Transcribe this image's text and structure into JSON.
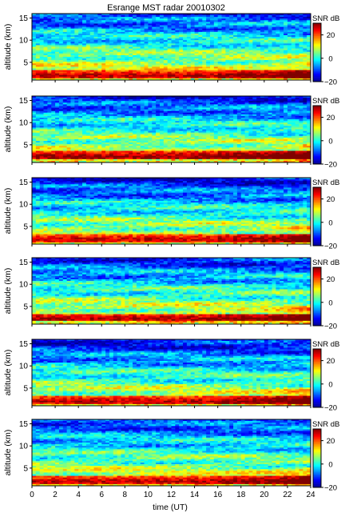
{
  "chart_data": {
    "type": "heatmap",
    "title": "Esrange MST radar 20010302",
    "xlabel": "time (UT)",
    "ylabel": "altitude (km)",
    "xlim": [
      0,
      24
    ],
    "x_ticks": [
      0,
      2,
      4,
      6,
      8,
      10,
      12,
      14,
      16,
      18,
      20,
      22,
      24
    ],
    "ylim": [
      1,
      16
    ],
    "y_ticks": [
      5,
      10,
      15
    ],
    "colorbar": {
      "label": "SNR dB",
      "range": [
        -20,
        30
      ],
      "ticks": [
        -20,
        0,
        20
      ],
      "colormap": "jet",
      "colors": [
        "#00008f",
        "#0000ff",
        "#00ffff",
        "#ffff00",
        "#ff0000",
        "#800000"
      ]
    },
    "panels": [
      {
        "name": "panel-1",
        "base_snr": 12,
        "ground_snr": 28,
        "ground_alt": 2.0,
        "upper_snr": -12
      },
      {
        "name": "panel-2",
        "base_snr": 12,
        "ground_snr": 30,
        "ground_alt": 2.3,
        "upper_snr": -14
      },
      {
        "name": "panel-3",
        "base_snr": 11,
        "ground_snr": 27,
        "ground_alt": 2.1,
        "upper_snr": -15
      },
      {
        "name": "panel-4",
        "base_snr": 12,
        "ground_snr": 29,
        "ground_alt": 2.2,
        "upper_snr": -13
      },
      {
        "name": "panel-5",
        "base_snr": 11,
        "ground_snr": 28,
        "ground_alt": 2.0,
        "upper_snr": -15
      },
      {
        "name": "panel-6",
        "base_snr": 11,
        "ground_snr": 28,
        "ground_alt": 2.0,
        "upper_snr": -12
      }
    ],
    "grid": false,
    "legend": "colorbar-right"
  }
}
